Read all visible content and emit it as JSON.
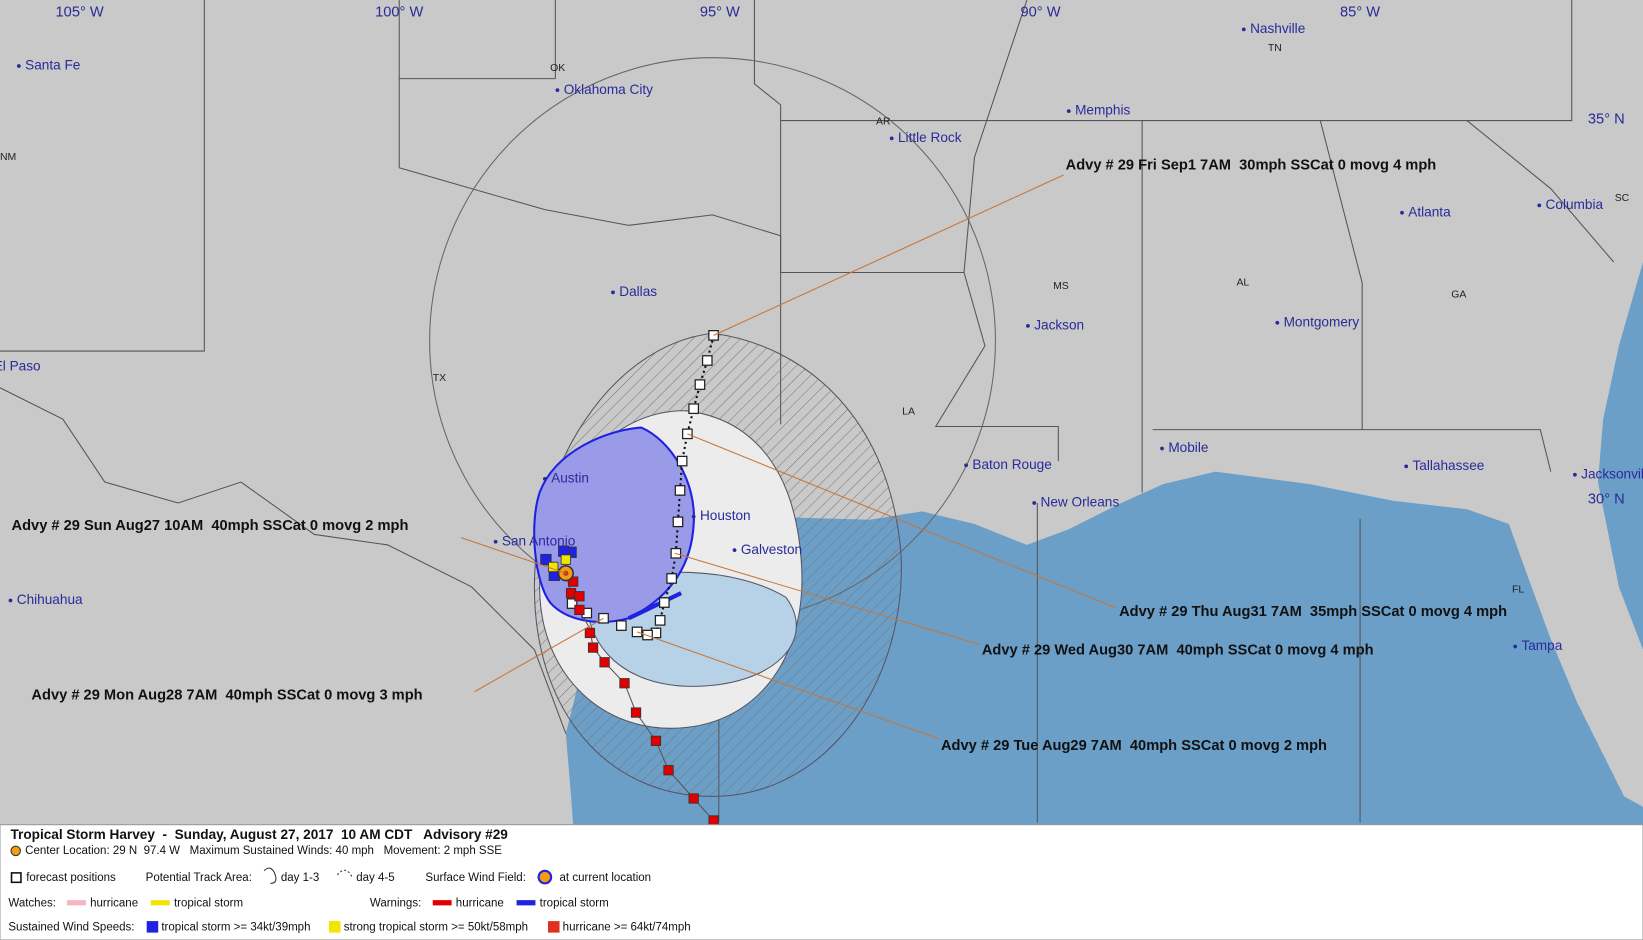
{
  "map": {
    "longitude_labels": [
      "105° W",
      "100° W",
      "95° W",
      "90° W",
      "85° W"
    ],
    "latitude_labels": [
      "35° N",
      "30° N"
    ],
    "cities": [
      "Santa Fe",
      "Oklahoma City",
      "Nashville",
      "Memphis",
      "Little Rock",
      "Atlanta",
      "Columbia",
      "Dallas",
      "Jackson",
      "Montgomery",
      "El Paso",
      "Baton Rouge",
      "Mobile",
      "Tallahassee",
      "Jacksonville",
      "Austin",
      "Houston",
      "Galveston",
      "San Antonio",
      "New Orleans",
      "Chihuahua",
      "Tampa"
    ],
    "states": [
      "OK",
      "TN",
      "AR",
      "NM",
      "MS",
      "AL",
      "GA",
      "SC",
      "TX",
      "LA",
      "FL"
    ]
  },
  "advisories": [
    "Advy # 29 Fri Sep1 7AM  30mph SSCat 0 movg 4 mph",
    "Advy # 29 Sun Aug27 10AM  40mph SSCat 0 movg 2 mph",
    "Advy # 29 Thu Aug31 7AM  35mph SSCat 0 movg 4 mph",
    "Advy # 29 Wed Aug30 7AM  40mph SSCat 0 movg 4 mph",
    "Advy # 29 Mon Aug28 7AM  40mph SSCat 0 movg 3 mph",
    "Advy # 29 Tue Aug29 7AM  40mph SSCat 0 movg 2 mph"
  ],
  "legend": {
    "title": "Tropical Storm Harvey  -  Sunday, August 27, 2017  10 AM CDT   Advisory #29",
    "center_info": "Center Location: 29 N  97.4 W   Maximum Sustained Winds: 40 mph   Movement: 2 mph SSE",
    "forecast_positions": "forecast positions",
    "track_area": "Potential Track Area:",
    "day1_3": "day 1-3",
    "day4_5": "day 4-5",
    "wind_field": "Surface Wind Field:",
    "current_location": "at current location",
    "watches": "Watches:",
    "watch_hurricane": "hurricane",
    "watch_tropical_storm": "tropical storm",
    "warnings": "Warnings:",
    "warning_hurricane": "hurricane",
    "warning_tropical_storm": "tropical storm",
    "wind_speeds": "Sustained Wind Speeds:",
    "speed_tropical_storm": "tropical storm >= 34kt/39mph",
    "speed_strong_tropical_storm": "strong tropical storm >= 50kt/58mph",
    "speed_hurricane": "hurricane >= 64kt/74mph"
  }
}
